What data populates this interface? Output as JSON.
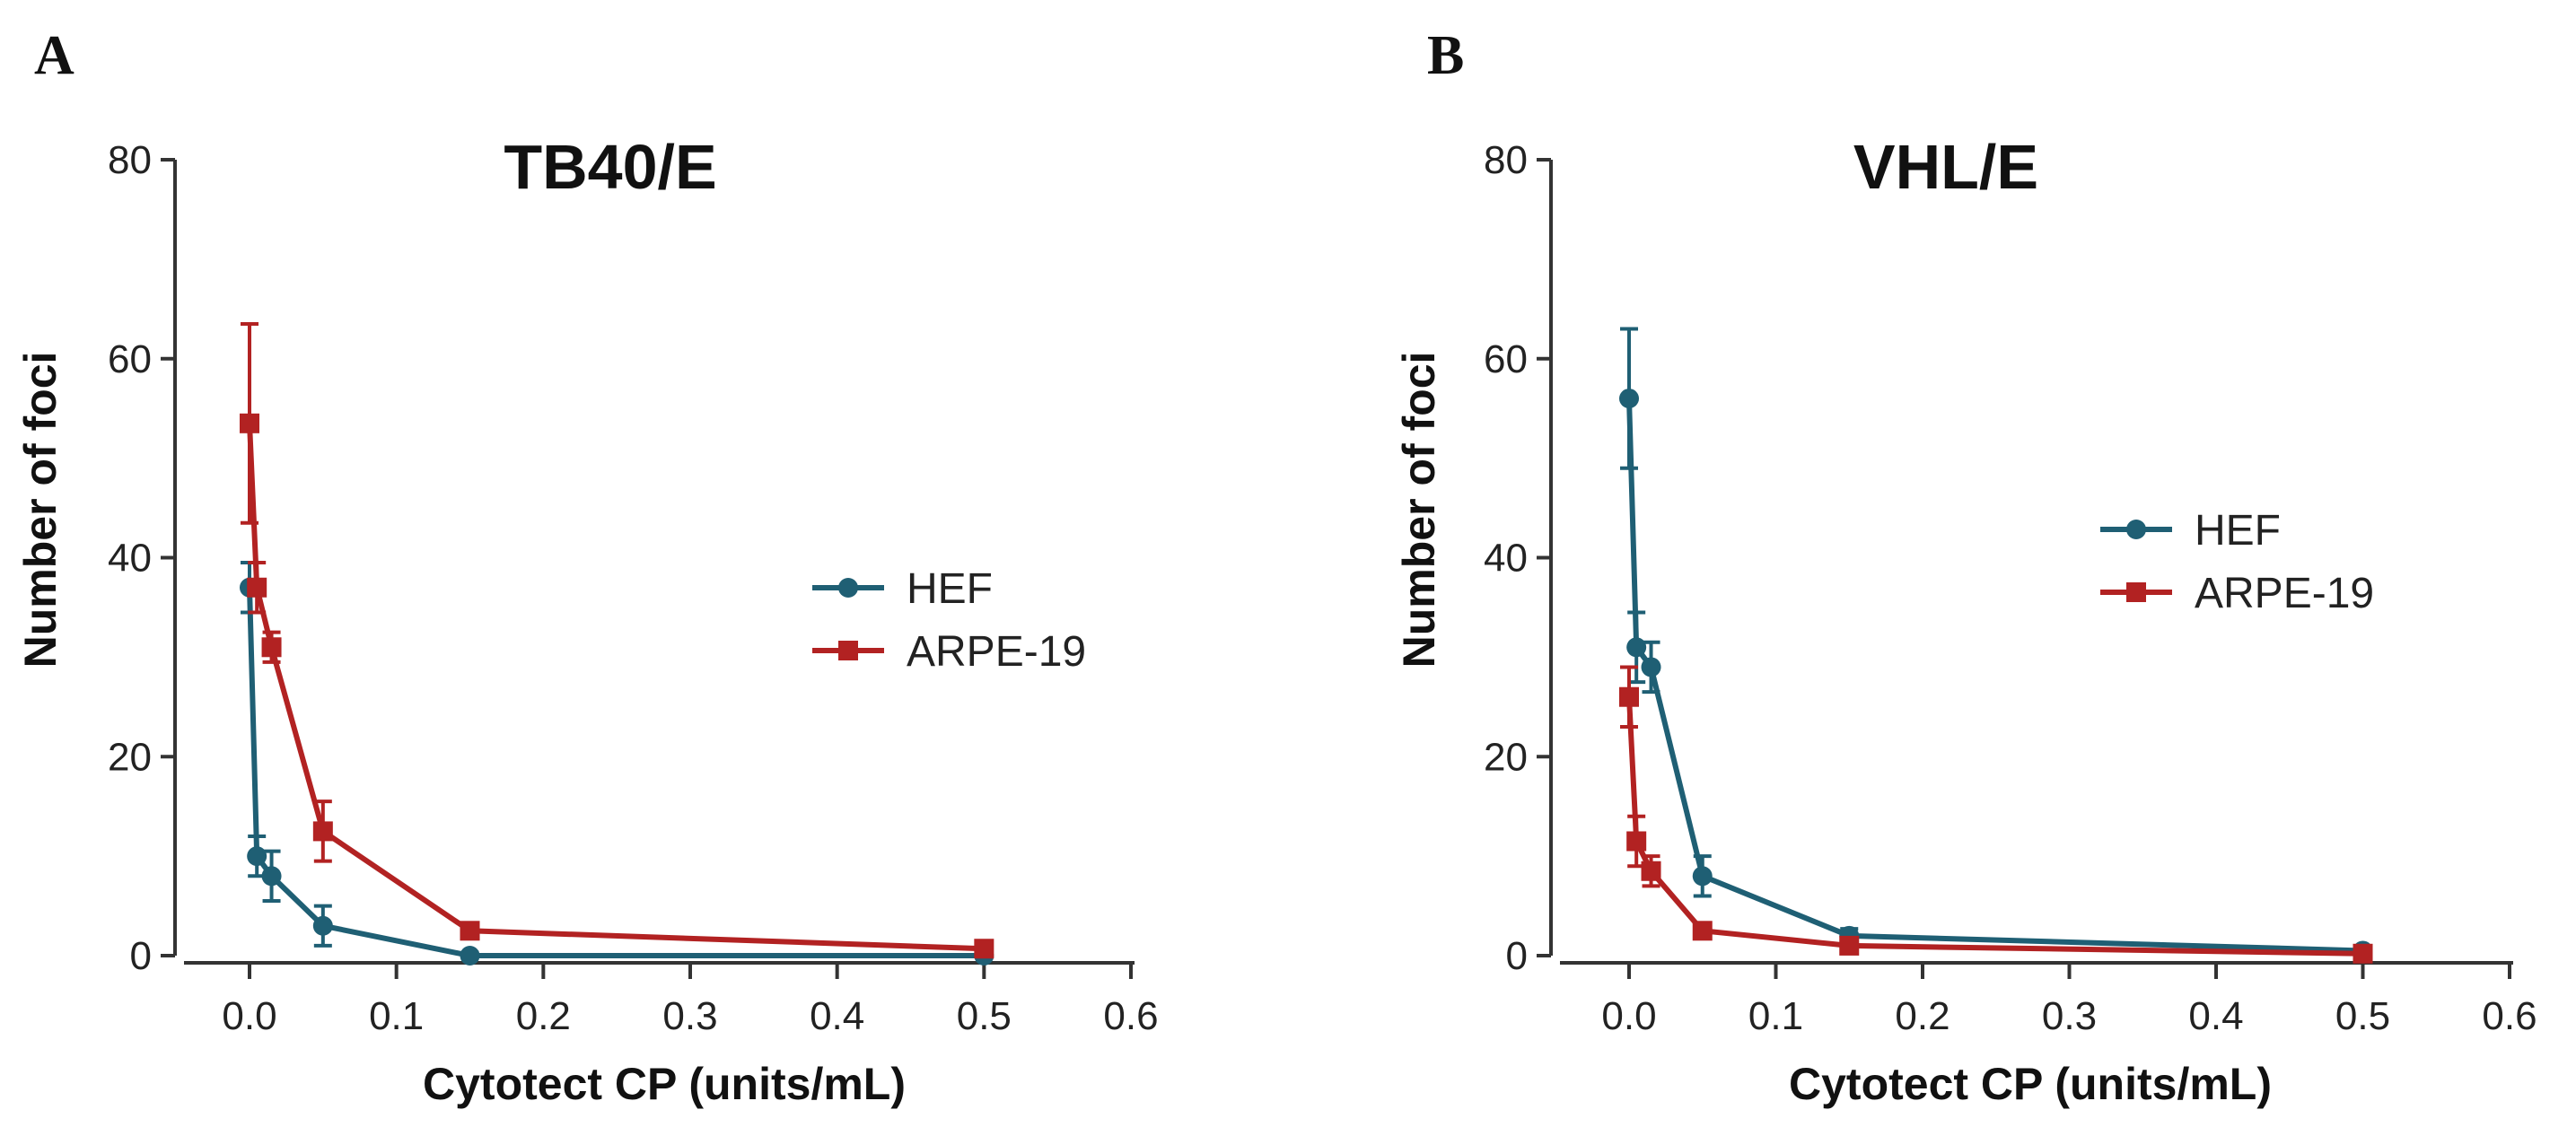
{
  "chart_data": [
    {
      "panel": "A",
      "type": "line",
      "title": "TB40/E",
      "xlabel": "Cytotect CP (units/mL)",
      "ylabel": "Number of foci",
      "xlim": [
        -0.05,
        0.6
      ],
      "ylim": [
        0,
        80
      ],
      "xticks": [
        "0.0",
        "0.1",
        "0.2",
        "0.3",
        "0.4",
        "0.5",
        "0.6"
      ],
      "yticks": [
        "0",
        "20",
        "40",
        "60",
        "80"
      ],
      "legend_position": "center-right",
      "series": [
        {
          "name": "HEF",
          "color": "#1f5f74",
          "marker": "circle",
          "x": [
            0.0,
            0.005,
            0.015,
            0.05,
            0.15,
            0.5
          ],
          "y": [
            37,
            10,
            8,
            3,
            0,
            0
          ],
          "err": [
            2.5,
            2,
            2.5,
            2,
            0.3,
            0.3
          ]
        },
        {
          "name": "ARPE-19",
          "color": "#b22222",
          "marker": "square",
          "x": [
            0.0,
            0.005,
            0.015,
            0.05,
            0.15,
            0.5
          ],
          "y": [
            53.5,
            37,
            31,
            12.5,
            2.5,
            0.7
          ],
          "err": [
            10,
            2.5,
            1.5,
            3,
            0.5,
            0.4
          ]
        }
      ]
    },
    {
      "panel": "B",
      "type": "line",
      "title": "VHL/E",
      "xlabel": "Cytotect CP (units/mL)",
      "ylabel": "Number of foci",
      "xlim": [
        -0.05,
        0.6
      ],
      "ylim": [
        0,
        80
      ],
      "xticks": [
        "0.0",
        "0.1",
        "0.2",
        "0.3",
        "0.4",
        "0.5",
        "0.6"
      ],
      "yticks": [
        "0",
        "20",
        "40",
        "60",
        "80"
      ],
      "legend_position": "center-right",
      "series": [
        {
          "name": "HEF",
          "color": "#1f5f74",
          "marker": "circle",
          "x": [
            0.0,
            0.005,
            0.015,
            0.05,
            0.15,
            0.5
          ],
          "y": [
            56,
            31,
            29,
            8,
            2,
            0.5
          ],
          "err": [
            7,
            3.5,
            2.5,
            2,
            0.7,
            0.3
          ]
        },
        {
          "name": "ARPE-19",
          "color": "#b22222",
          "marker": "square",
          "x": [
            0.0,
            0.005,
            0.015,
            0.05,
            0.15,
            0.5
          ],
          "y": [
            26,
            11.5,
            8.5,
            2.5,
            1,
            0.2
          ],
          "err": [
            3,
            2.5,
            1.5,
            0.4,
            0.3,
            0.2
          ]
        }
      ]
    }
  ]
}
